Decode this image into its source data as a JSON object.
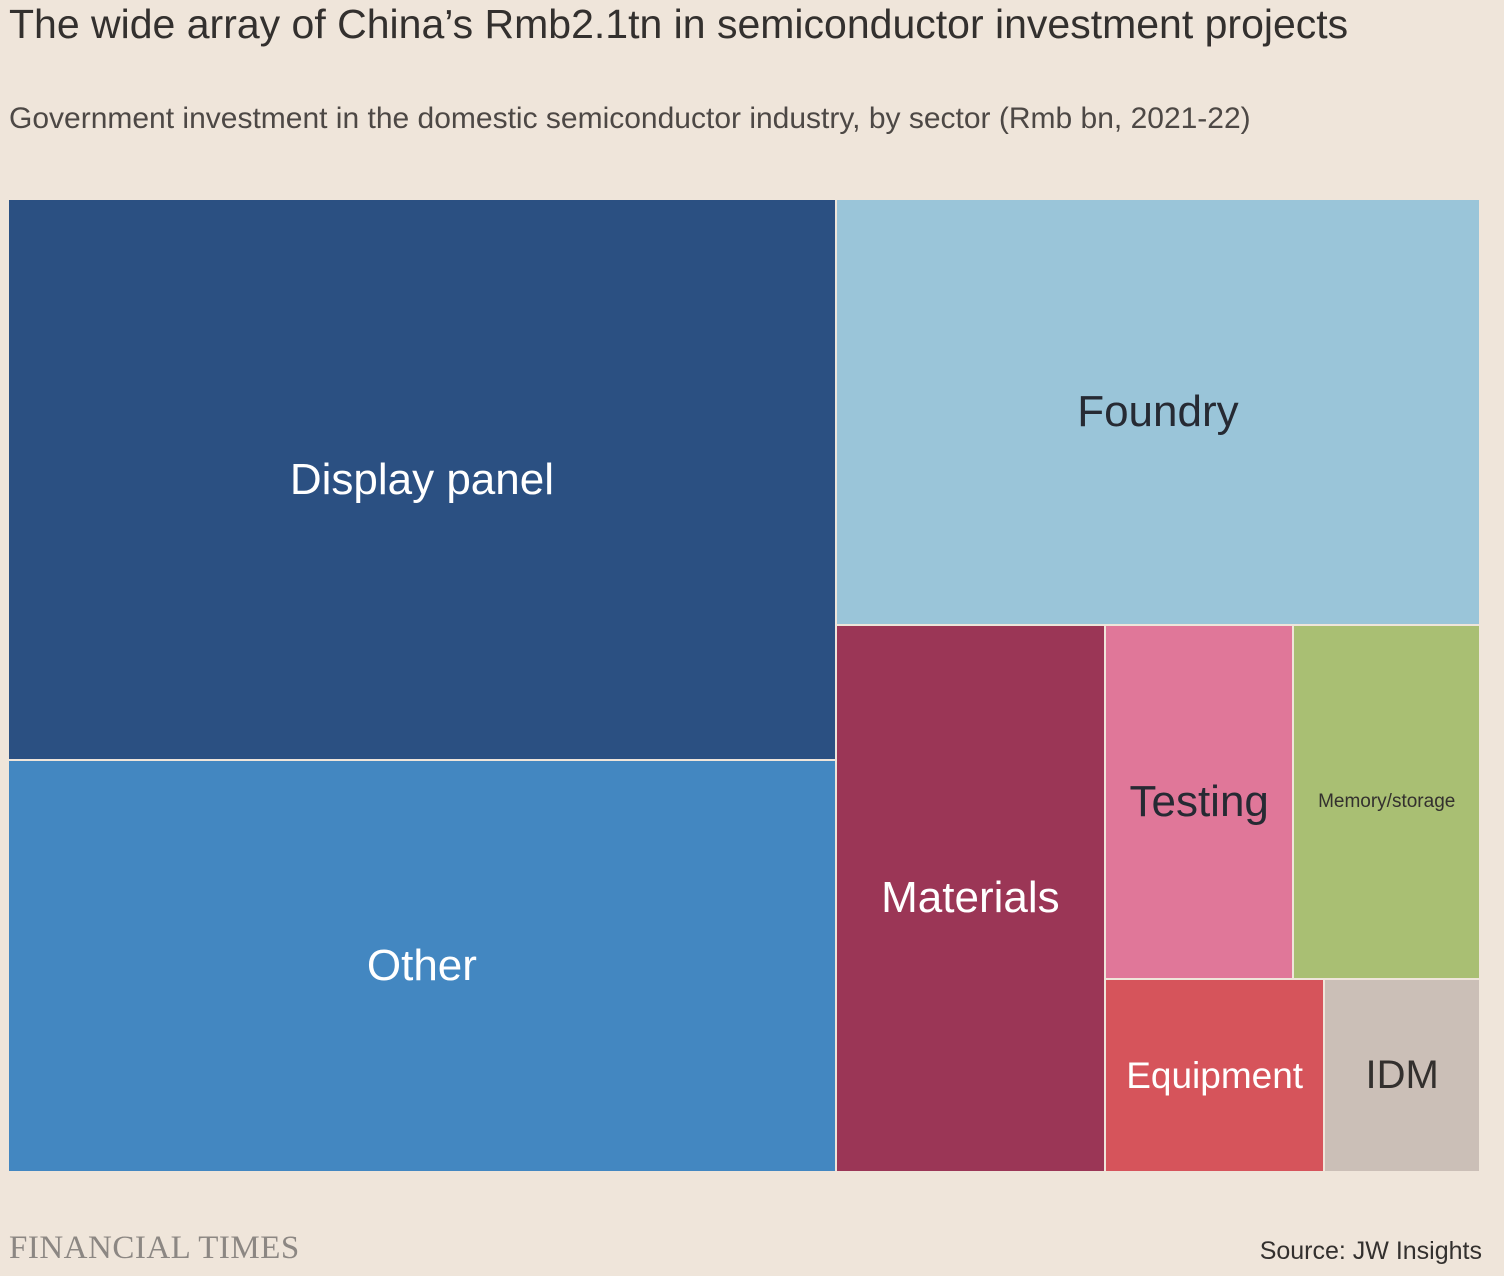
{
  "title": "The wide array of China’s Rmb2.1tn in semiconductor investment projects",
  "subtitle": "Government investment in the domestic semiconductor industry, by sector (Rmb bn, 2021-22)",
  "brand": "FINANCIAL TIMES",
  "source": "Source: JW Insights",
  "chart_data": {
    "type": "treemap",
    "title": "The wide array of China’s Rmb2.1tn in semiconductor investment projects",
    "subtitle": "Government investment in the domestic semiconductor industry, by sector (Rmb bn, 2021-22)",
    "unit": "Rmb bn",
    "total": 2100,
    "sectors": [
      {
        "name": "Display panel",
        "label": "Display panel",
        "value": 681,
        "color": "#2b5082",
        "text_color": "#ffffff"
      },
      {
        "name": "Other",
        "label": "Other",
        "value": 500,
        "color": "#4387c1",
        "text_color": "#ffffff"
      },
      {
        "name": "Foundry",
        "label": "Foundry",
        "value": 402,
        "color": "#9ac5d9",
        "text_color": "#262a33"
      },
      {
        "name": "Materials",
        "label": "Materials",
        "value": 216,
        "color": "#9b3656",
        "text_color": "#ffffff"
      },
      {
        "name": "Testing",
        "label": "Testing",
        "value": 98,
        "color": "#e07799",
        "text_color": "#262a33"
      },
      {
        "name": "Memory/storage",
        "label": "Memory/storage",
        "value": 97,
        "color": "#a9bf73",
        "text_color": "#33302e"
      },
      {
        "name": "Equipment",
        "label": "Equipment",
        "value": 62,
        "color": "#d6545b",
        "text_color": "#ffffff"
      },
      {
        "name": "IDM",
        "label": "IDM",
        "value": 44,
        "color": "#cbbfb7",
        "text_color": "#33302e"
      }
    ]
  }
}
